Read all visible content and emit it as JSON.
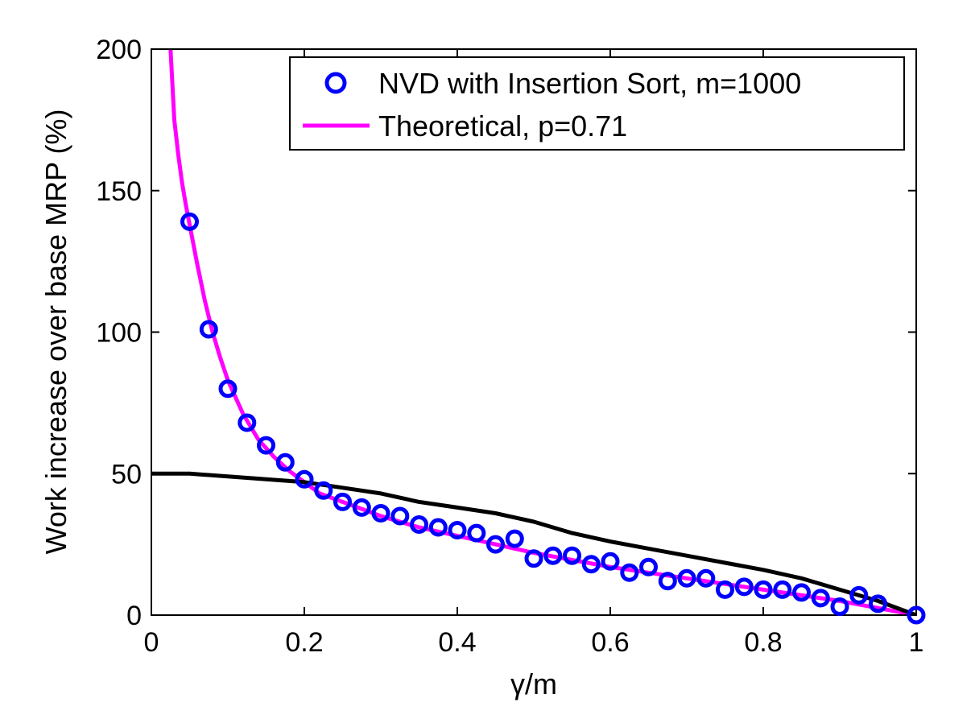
{
  "chart_data": {
    "type": "line",
    "xlabel": "γ/m",
    "ylabel": "Work increase over base MRP (%)",
    "xlim": [
      0,
      1
    ],
    "ylim": [
      0,
      200
    ],
    "xticks": [
      0,
      0.2,
      0.4,
      0.6,
      0.8,
      1
    ],
    "xtick_labels": [
      "0",
      "0.2",
      "0.4",
      "0.6",
      "0.8",
      "1"
    ],
    "yticks": [
      0,
      50,
      100,
      150,
      200
    ],
    "ytick_labels": [
      "0",
      "50",
      "100",
      "150",
      "200"
    ],
    "grid": false,
    "legend_position": "top-right",
    "series": [
      {
        "name": "NVD with Insertion Sort, m=1000",
        "kind": "scatter",
        "marker": "circle-open",
        "color": "#0000ff",
        "x": [
          0.05,
          0.075,
          0.1,
          0.125,
          0.15,
          0.175,
          0.2,
          0.225,
          0.25,
          0.275,
          0.3,
          0.325,
          0.35,
          0.375,
          0.4,
          0.425,
          0.45,
          0.475,
          0.5,
          0.525,
          0.55,
          0.575,
          0.6,
          0.625,
          0.65,
          0.675,
          0.7,
          0.725,
          0.75,
          0.775,
          0.8,
          0.825,
          0.85,
          0.875,
          0.9,
          0.925,
          0.95,
          1.0
        ],
        "y": [
          139,
          101,
          80,
          68,
          60,
          54,
          48,
          44,
          40,
          38,
          36,
          35,
          32,
          31,
          30,
          29,
          25,
          27,
          20,
          21,
          21,
          18,
          19,
          15,
          17,
          12,
          13,
          13,
          9,
          10,
          9,
          9,
          8,
          6,
          3,
          7,
          4,
          0
        ]
      },
      {
        "name": "Theoretical, p=0.71",
        "kind": "line",
        "color": "#ff00ff",
        "x": [
          0.025,
          0.03,
          0.035,
          0.04,
          0.045,
          0.05,
          0.06,
          0.07,
          0.08,
          0.09,
          0.1,
          0.12,
          0.14,
          0.16,
          0.18,
          0.2,
          0.22,
          0.25,
          0.28,
          0.3,
          0.35,
          0.4,
          0.45,
          0.5,
          0.55,
          0.6,
          0.65,
          0.7,
          0.75,
          0.8,
          0.85,
          0.9,
          0.95,
          1.0
        ],
        "y": [
          200,
          175,
          163,
          153,
          145,
          138,
          124,
          111,
          100,
          91,
          83,
          71,
          62,
          56,
          51,
          47,
          43,
          40,
          37,
          35,
          31,
          28,
          25,
          22,
          19.5,
          17,
          15,
          13,
          11,
          9,
          7,
          5,
          2.5,
          0
        ]
      },
      {
        "kind": "line",
        "color": "#000000",
        "x": [
          0,
          0.05,
          0.1,
          0.15,
          0.2,
          0.25,
          0.3,
          0.35,
          0.4,
          0.45,
          0.5,
          0.55,
          0.6,
          0.65,
          0.7,
          0.75,
          0.8,
          0.85,
          0.9,
          0.95,
          1.0
        ],
        "y": [
          50,
          50,
          49,
          48,
          47,
          45,
          43,
          40,
          38,
          36,
          33,
          29,
          26,
          23.5,
          21,
          18.5,
          16,
          13,
          9,
          5,
          0
        ]
      }
    ]
  }
}
